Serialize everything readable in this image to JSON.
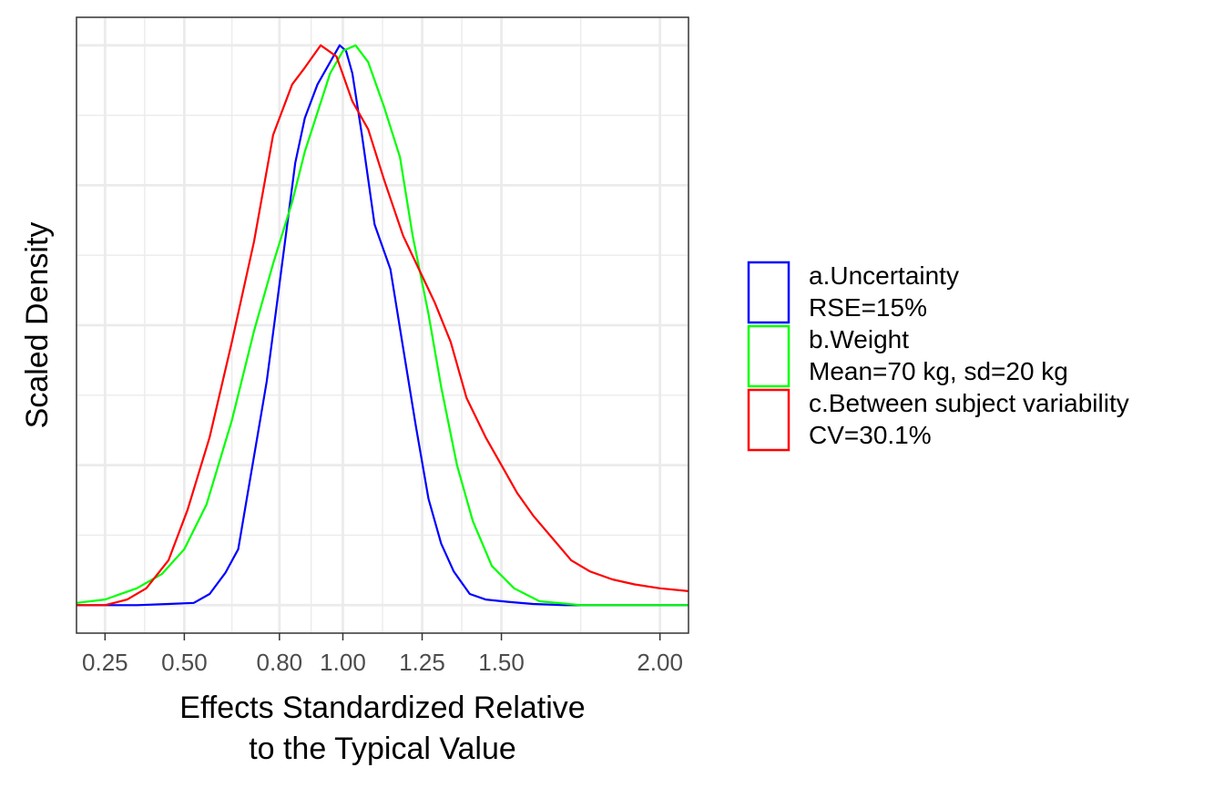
{
  "chart_data": {
    "type": "line",
    "title": "",
    "xlabel_lines": [
      "Effects Standardized Relative",
      "to the Typical Value"
    ],
    "ylabel": "Scaled Density",
    "xlim": [
      0.16,
      2.09
    ],
    "ylim": [
      -0.05,
      1.05
    ],
    "x_ticks": [
      0.25,
      0.5,
      0.8,
      1.0,
      1.25,
      1.5,
      2.0
    ],
    "x_tick_labels": [
      "0.25",
      "0.50",
      "0.80",
      "1.00",
      "1.25",
      "1.50",
      "2.00"
    ],
    "x_minor_gridlines": [
      0.375,
      0.65,
      0.9,
      1.125,
      1.375,
      1.75
    ],
    "y_gridlines": [
      0.0,
      0.25,
      0.5,
      0.75,
      1.0
    ],
    "y_minor_gridlines": [
      0.125,
      0.375,
      0.625,
      0.875
    ],
    "grid": true,
    "legend_position": "right",
    "series": [
      {
        "name": "a.Uncertainty\nRSE=15%",
        "color": "#0000FF",
        "points": [
          [
            0.16,
            0.0
          ],
          [
            0.35,
            0.0
          ],
          [
            0.45,
            0.002
          ],
          [
            0.53,
            0.004
          ],
          [
            0.58,
            0.02
          ],
          [
            0.63,
            0.058
          ],
          [
            0.67,
            0.1
          ],
          [
            0.7,
            0.2
          ],
          [
            0.73,
            0.3
          ],
          [
            0.76,
            0.4
          ],
          [
            0.79,
            0.53
          ],
          [
            0.82,
            0.66
          ],
          [
            0.85,
            0.79
          ],
          [
            0.88,
            0.87
          ],
          [
            0.92,
            0.93
          ],
          [
            0.96,
            0.97
          ],
          [
            0.99,
            1.0
          ],
          [
            1.01,
            0.99
          ],
          [
            1.03,
            0.95
          ],
          [
            1.06,
            0.84
          ],
          [
            1.1,
            0.68
          ],
          [
            1.15,
            0.6
          ],
          [
            1.19,
            0.46
          ],
          [
            1.23,
            0.32
          ],
          [
            1.27,
            0.19
          ],
          [
            1.31,
            0.11
          ],
          [
            1.35,
            0.06
          ],
          [
            1.4,
            0.02
          ],
          [
            1.45,
            0.01
          ],
          [
            1.52,
            0.006
          ],
          [
            1.6,
            0.002
          ],
          [
            1.7,
            0.0
          ],
          [
            2.09,
            0.0
          ]
        ]
      },
      {
        "name": "b.Weight\nMean=70 kg, sd=20 kg",
        "color": "#00FF00",
        "points": [
          [
            0.16,
            0.004
          ],
          [
            0.25,
            0.01
          ],
          [
            0.35,
            0.03
          ],
          [
            0.43,
            0.056
          ],
          [
            0.5,
            0.1
          ],
          [
            0.57,
            0.18
          ],
          [
            0.65,
            0.33
          ],
          [
            0.72,
            0.49
          ],
          [
            0.78,
            0.61
          ],
          [
            0.84,
            0.72
          ],
          [
            0.88,
            0.81
          ],
          [
            0.92,
            0.88
          ],
          [
            0.96,
            0.95
          ],
          [
            1.0,
            0.99
          ],
          [
            1.04,
            1.0
          ],
          [
            1.08,
            0.97
          ],
          [
            1.13,
            0.89
          ],
          [
            1.18,
            0.8
          ],
          [
            1.22,
            0.66
          ],
          [
            1.27,
            0.52
          ],
          [
            1.31,
            0.39
          ],
          [
            1.36,
            0.25
          ],
          [
            1.41,
            0.15
          ],
          [
            1.47,
            0.07
          ],
          [
            1.54,
            0.03
          ],
          [
            1.62,
            0.007
          ],
          [
            1.75,
            0.0
          ],
          [
            2.09,
            0.0
          ]
        ]
      },
      {
        "name": "c.Between subject variability\nCV=30.1%",
        "color": "#FF0000",
        "points": [
          [
            0.16,
            0.0
          ],
          [
            0.25,
            0.0
          ],
          [
            0.32,
            0.01
          ],
          [
            0.38,
            0.03
          ],
          [
            0.45,
            0.08
          ],
          [
            0.51,
            0.17
          ],
          [
            0.58,
            0.3
          ],
          [
            0.65,
            0.47
          ],
          [
            0.72,
            0.65
          ],
          [
            0.78,
            0.84
          ],
          [
            0.84,
            0.93
          ],
          [
            0.88,
            0.96
          ],
          [
            0.93,
            1.0
          ],
          [
            0.98,
            0.98
          ],
          [
            1.03,
            0.9
          ],
          [
            1.08,
            0.85
          ],
          [
            1.13,
            0.76
          ],
          [
            1.19,
            0.66
          ],
          [
            1.24,
            0.6
          ],
          [
            1.29,
            0.54
          ],
          [
            1.34,
            0.47
          ],
          [
            1.39,
            0.37
          ],
          [
            1.45,
            0.3
          ],
          [
            1.5,
            0.25
          ],
          [
            1.55,
            0.2
          ],
          [
            1.6,
            0.16
          ],
          [
            1.66,
            0.12
          ],
          [
            1.72,
            0.08
          ],
          [
            1.78,
            0.06
          ],
          [
            1.85,
            0.046
          ],
          [
            1.92,
            0.037
          ],
          [
            2.0,
            0.03
          ],
          [
            2.09,
            0.025
          ]
        ]
      }
    ]
  }
}
